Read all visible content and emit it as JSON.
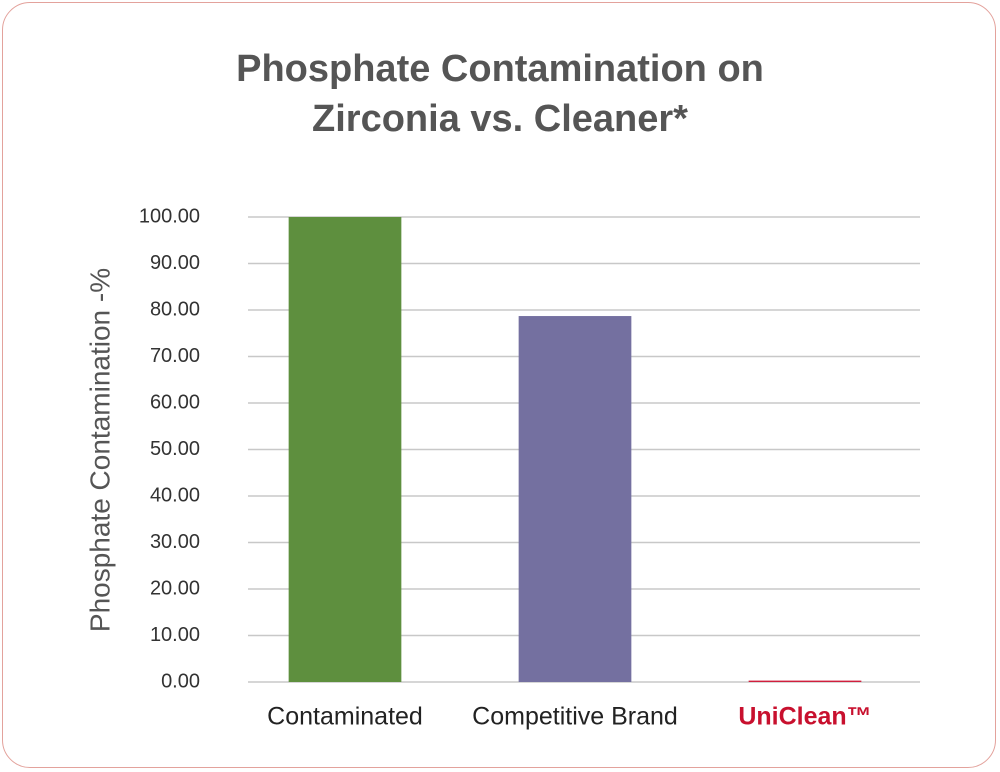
{
  "chart_data": {
    "type": "bar",
    "title": "Phosphate Contamination on Zirconia vs. Cleaner*",
    "y_label": "Phosphate Contamination -%",
    "categories": [
      "Contaminated",
      "Competitive Brand",
      "UniClean™"
    ],
    "values": [
      100,
      78.7,
      0.3
    ],
    "colors": [
      "#5e8f3e",
      "#7470a0",
      "#d01f3c"
    ],
    "category_label_colors": [
      "#222222",
      "#222222",
      "#c8102e"
    ],
    "ylim": [
      0,
      100
    ],
    "yticks": [
      {
        "value": 0,
        "label": "0.00"
      },
      {
        "value": 10,
        "label": "10.00"
      },
      {
        "value": 20,
        "label": "20.00"
      },
      {
        "value": 30,
        "label": "30.00"
      },
      {
        "value": 40,
        "label": "40.00"
      },
      {
        "value": 50,
        "label": "50.00"
      },
      {
        "value": 60,
        "label": "60.00"
      },
      {
        "value": 70,
        "label": "70.00"
      },
      {
        "value": 80,
        "label": "80.00"
      },
      {
        "value": 90,
        "label": "90.00"
      },
      {
        "value": 100,
        "label": "100.00"
      }
    ],
    "grid": true
  }
}
